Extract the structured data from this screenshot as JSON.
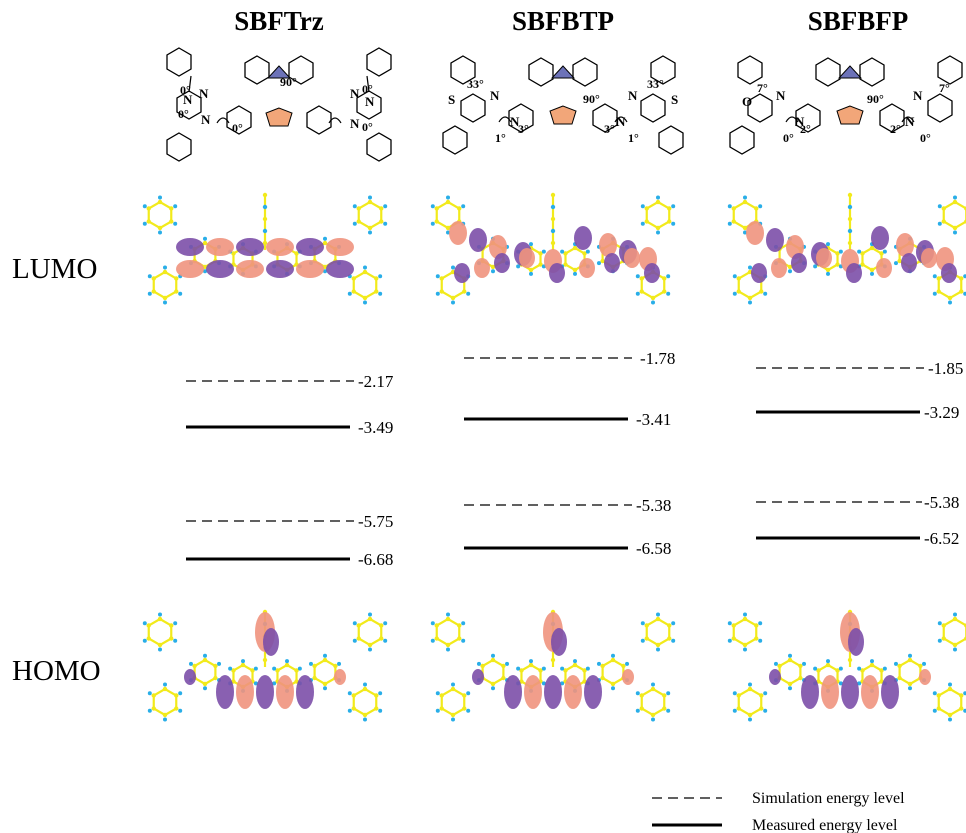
{
  "colors": {
    "pink": "#f0947e",
    "purple": "#7c4fa8",
    "spiro_blue": "#6c72b8",
    "spiro_orange": "#f2a679",
    "carbon": "#f2ea1b",
    "hydrogen": "#29aee8",
    "line": "#000000"
  },
  "row_labels": {
    "lumo": "LUMO",
    "homo": "HOMO"
  },
  "molecules": [
    {
      "name": "SBFTrz",
      "angles": [
        "0°",
        "0°",
        "0°",
        "90°",
        "0°",
        "0°"
      ],
      "atoms": [
        "N",
        "N",
        "N",
        "N",
        "N",
        "N"
      ],
      "levels": {
        "lumo_sim": "-2.17",
        "lumo_meas": "-3.49",
        "homo_sim": "-5.75",
        "homo_meas": "-6.68"
      }
    },
    {
      "name": "SBFBTP",
      "angles": [
        "33°",
        "1°",
        "3°",
        "90°",
        "3°",
        "1°",
        "33°"
      ],
      "atoms": [
        "S",
        "N",
        "N",
        "N",
        "N",
        "S"
      ],
      "levels": {
        "lumo_sim": "-1.78",
        "lumo_meas": "-3.41",
        "homo_sim": "-5.38",
        "homo_meas": "-6.58"
      }
    },
    {
      "name": "SBFBFP",
      "angles": [
        "7°",
        "0°",
        "2°",
        "90°",
        "2°",
        "0°",
        "7°"
      ],
      "atoms": [
        "O",
        "N",
        "N",
        "N",
        "N"
      ],
      "levels": {
        "lumo_sim": "-1.85",
        "lumo_meas": "-3.29",
        "homo_sim": "-5.38",
        "homo_meas": "-6.52"
      }
    }
  ],
  "legend": {
    "simulation": "Simulation energy level",
    "measured": "Measured energy level"
  }
}
